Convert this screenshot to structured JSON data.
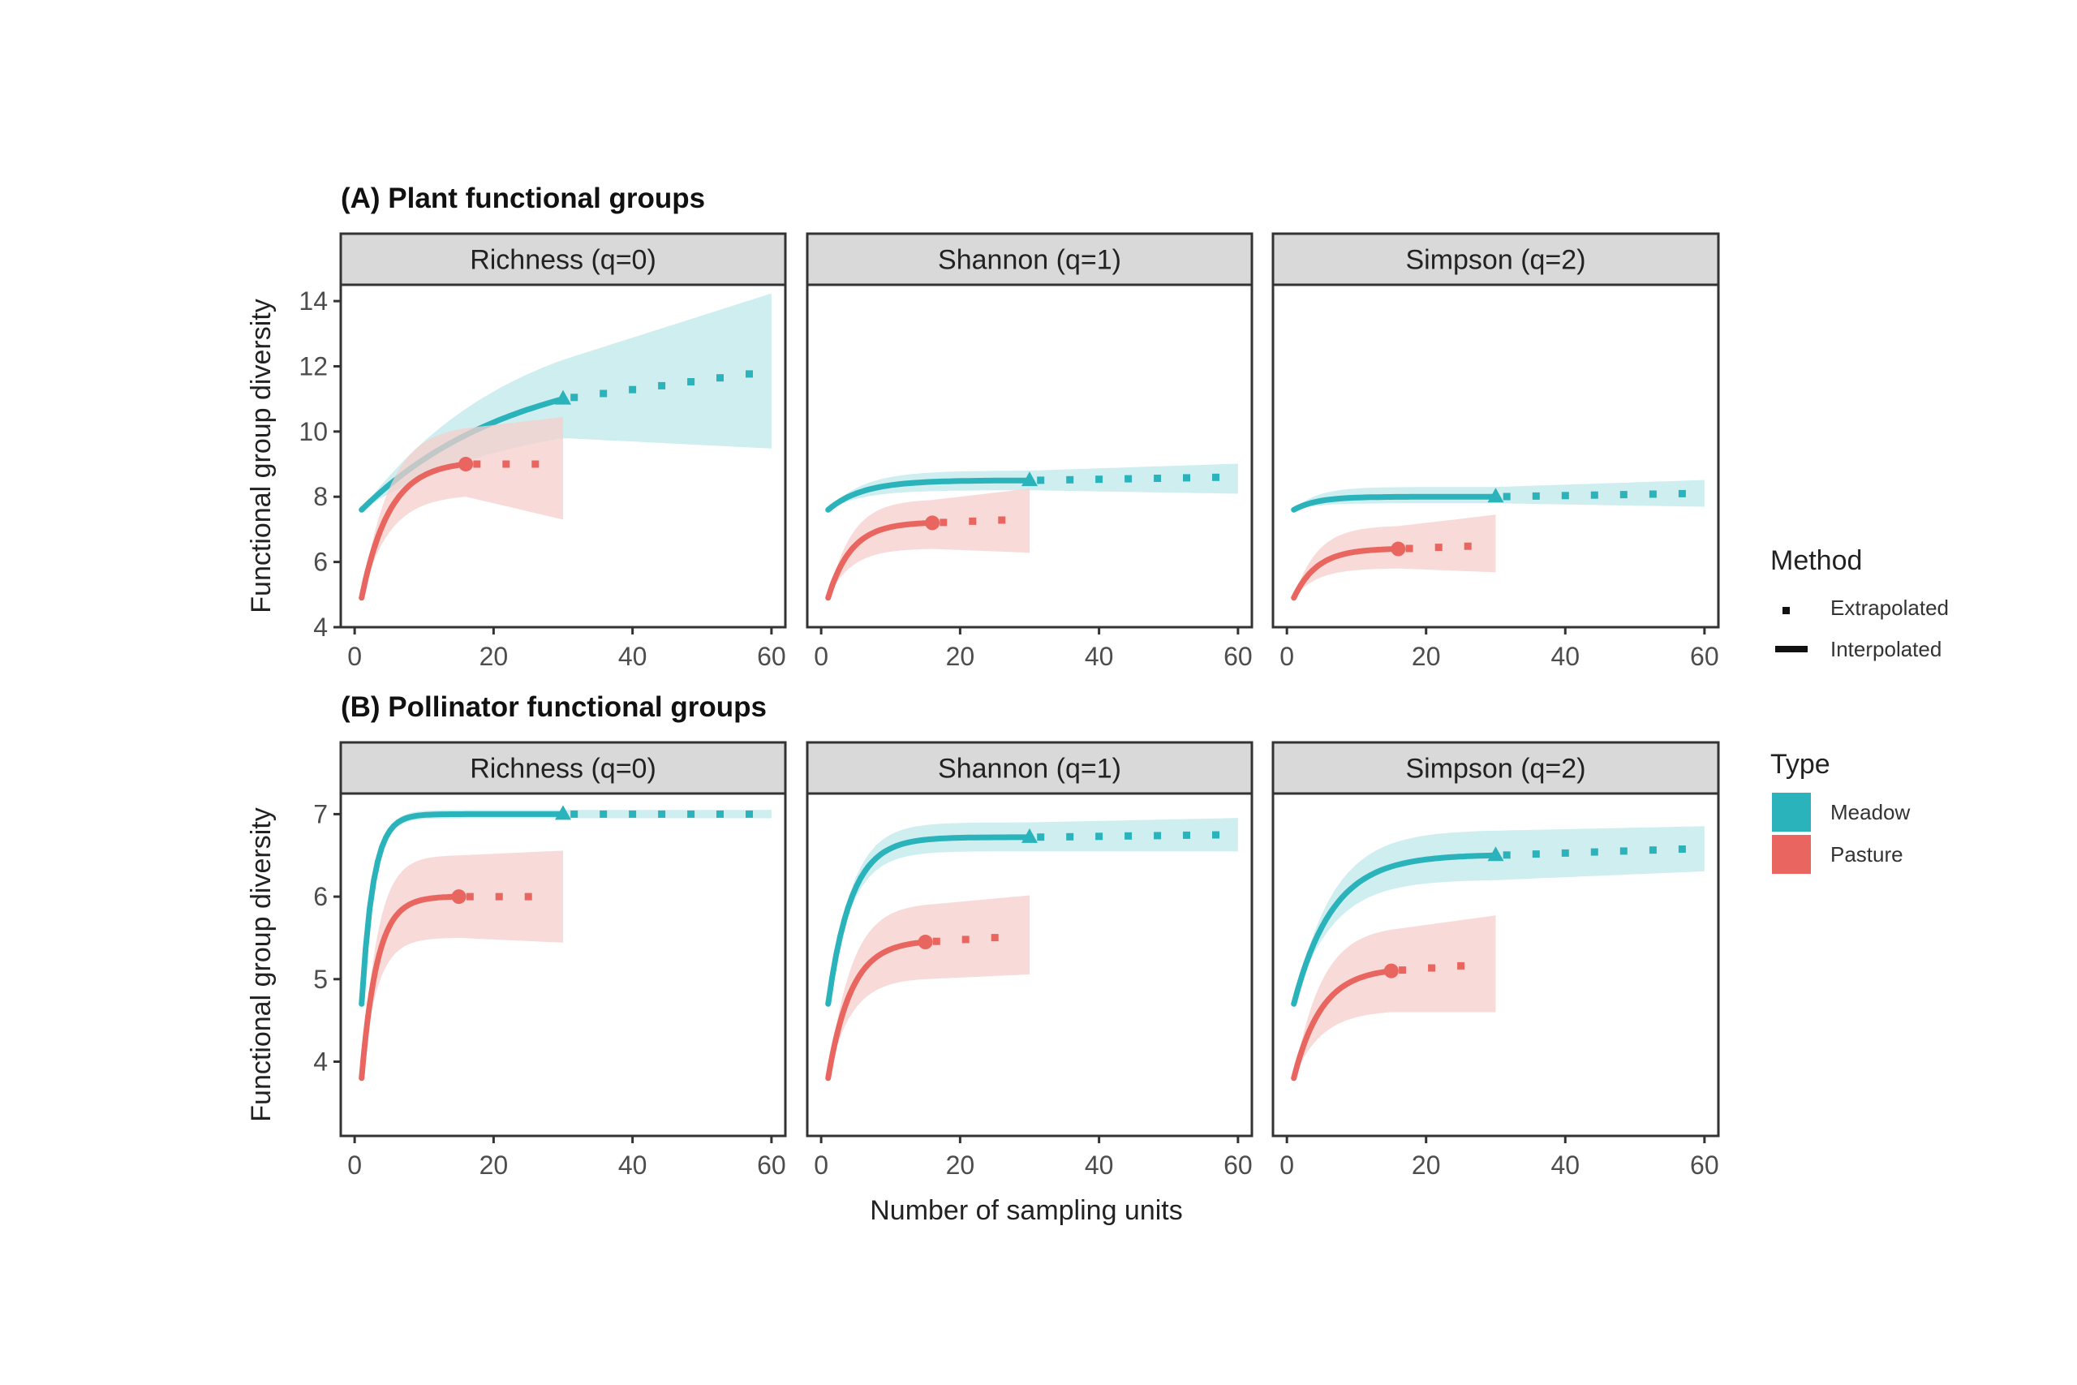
{
  "colors": {
    "meadow": "#2ab3bb",
    "pasture": "#e8665f",
    "meadow_band": "#bfe8eb",
    "pasture_band": "#f6cfcb",
    "strip_bg": "#d9d9d9",
    "panel_border": "#333333"
  },
  "chart_data": [
    {
      "type": "line",
      "row_title": "(A) Plant functional groups",
      "ylabel": "Functional group diversity",
      "xlabel": "",
      "ylim": [
        4,
        14.5
      ],
      "yticks": [
        4,
        6,
        8,
        10,
        12,
        14
      ],
      "xlim": [
        -2,
        62
      ],
      "xticks": [
        0,
        20,
        40,
        60
      ],
      "panels": [
        {
          "title": "Richness (q=0)",
          "series": [
            {
              "name": "Meadow",
              "start": 1,
              "start_val": 7.6,
              "obs_x": 30,
              "obs_val": 11.0,
              "end_x": 58,
              "end_val": 11.8,
              "k": 0.045,
              "ci_obs": [
                9.8,
                12.2
              ],
              "ci_end": [
                9.5,
                14.1
              ]
            },
            {
              "name": "Pasture",
              "start": 1,
              "start_val": 4.9,
              "obs_x": 16,
              "obs_val": 9.0,
              "end_x": 28,
              "end_val": 9.0,
              "k": 0.25,
              "ci_obs": [
                8.0,
                10.1
              ],
              "ci_end": [
                7.4,
                10.4
              ]
            }
          ]
        },
        {
          "title": "Shannon (q=1)",
          "series": [
            {
              "name": "Meadow",
              "start": 1,
              "start_val": 7.6,
              "obs_x": 30,
              "obs_val": 8.5,
              "end_x": 58,
              "end_val": 8.6,
              "k": 0.2,
              "ci_obs": [
                8.2,
                8.8
              ],
              "ci_end": [
                8.1,
                9.0
              ]
            },
            {
              "name": "Pasture",
              "start": 1,
              "start_val": 4.9,
              "obs_x": 16,
              "obs_val": 7.2,
              "end_x": 28,
              "end_val": 7.3,
              "k": 0.3,
              "ci_obs": [
                6.4,
                7.9
              ],
              "ci_end": [
                6.3,
                8.2
              ]
            }
          ]
        },
        {
          "title": "Simpson (q=2)",
          "series": [
            {
              "name": "Meadow",
              "start": 1,
              "start_val": 7.6,
              "obs_x": 30,
              "obs_val": 8.0,
              "end_x": 58,
              "end_val": 8.1,
              "k": 0.3,
              "ci_obs": [
                7.8,
                8.3
              ],
              "ci_end": [
                7.7,
                8.5
              ]
            },
            {
              "name": "Pasture",
              "start": 1,
              "start_val": 4.9,
              "obs_x": 16,
              "obs_val": 6.4,
              "end_x": 28,
              "end_val": 6.5,
              "k": 0.3,
              "ci_obs": [
                5.8,
                7.1
              ],
              "ci_end": [
                5.7,
                7.4
              ]
            }
          ]
        }
      ]
    },
    {
      "type": "line",
      "row_title": "(B) Pollinator functional groups",
      "ylabel": "Functional group diversity",
      "xlabel": "Number of sampling units",
      "ylim": [
        3.1,
        7.25
      ],
      "yticks": [
        4,
        5,
        6,
        7
      ],
      "xlim": [
        -2,
        62
      ],
      "xticks": [
        0,
        20,
        40,
        60
      ],
      "panels": [
        {
          "title": "Richness (q=0)",
          "series": [
            {
              "name": "Meadow",
              "start": 1,
              "start_val": 4.7,
              "obs_x": 30,
              "obs_val": 7.0,
              "end_x": 58,
              "end_val": 7.0,
              "k": 0.6,
              "ci_obs": [
                6.95,
                7.05
              ],
              "ci_end": [
                6.95,
                7.05
              ]
            },
            {
              "name": "Pasture",
              "start": 1,
              "start_val": 3.8,
              "obs_x": 15,
              "obs_val": 6.0,
              "end_x": 28,
              "end_val": 6.0,
              "k": 0.45,
              "ci_obs": [
                5.5,
                6.5
              ],
              "ci_end": [
                5.45,
                6.55
              ]
            }
          ]
        },
        {
          "title": "Shannon (q=1)",
          "series": [
            {
              "name": "Meadow",
              "start": 1,
              "start_val": 4.7,
              "obs_x": 30,
              "obs_val": 6.72,
              "end_x": 58,
              "end_val": 6.75,
              "k": 0.3,
              "ci_obs": [
                6.55,
                6.9
              ],
              "ci_end": [
                6.55,
                6.95
              ]
            },
            {
              "name": "Pasture",
              "start": 1,
              "start_val": 3.8,
              "obs_x": 15,
              "obs_val": 5.45,
              "end_x": 28,
              "end_val": 5.52,
              "k": 0.3,
              "ci_obs": [
                5.0,
                5.9
              ],
              "ci_end": [
                5.05,
                6.0
              ]
            }
          ]
        },
        {
          "title": "Simpson (q=2)",
          "series": [
            {
              "name": "Meadow",
              "start": 1,
              "start_val": 4.7,
              "obs_x": 30,
              "obs_val": 6.5,
              "end_x": 58,
              "end_val": 6.58,
              "k": 0.18,
              "ci_obs": [
                6.2,
                6.8
              ],
              "ci_end": [
                6.3,
                6.85
              ]
            },
            {
              "name": "Pasture",
              "start": 1,
              "start_val": 3.8,
              "obs_x": 15,
              "obs_val": 5.1,
              "end_x": 28,
              "end_val": 5.18,
              "k": 0.25,
              "ci_obs": [
                4.6,
                5.6
              ],
              "ci_end": [
                4.6,
                5.75
              ]
            }
          ]
        }
      ]
    }
  ],
  "legend": {
    "method_title": "Method",
    "method_items": [
      "Extrapolated",
      "Interpolated"
    ],
    "type_title": "Type",
    "type_items": [
      "Meadow",
      "Pasture"
    ]
  }
}
